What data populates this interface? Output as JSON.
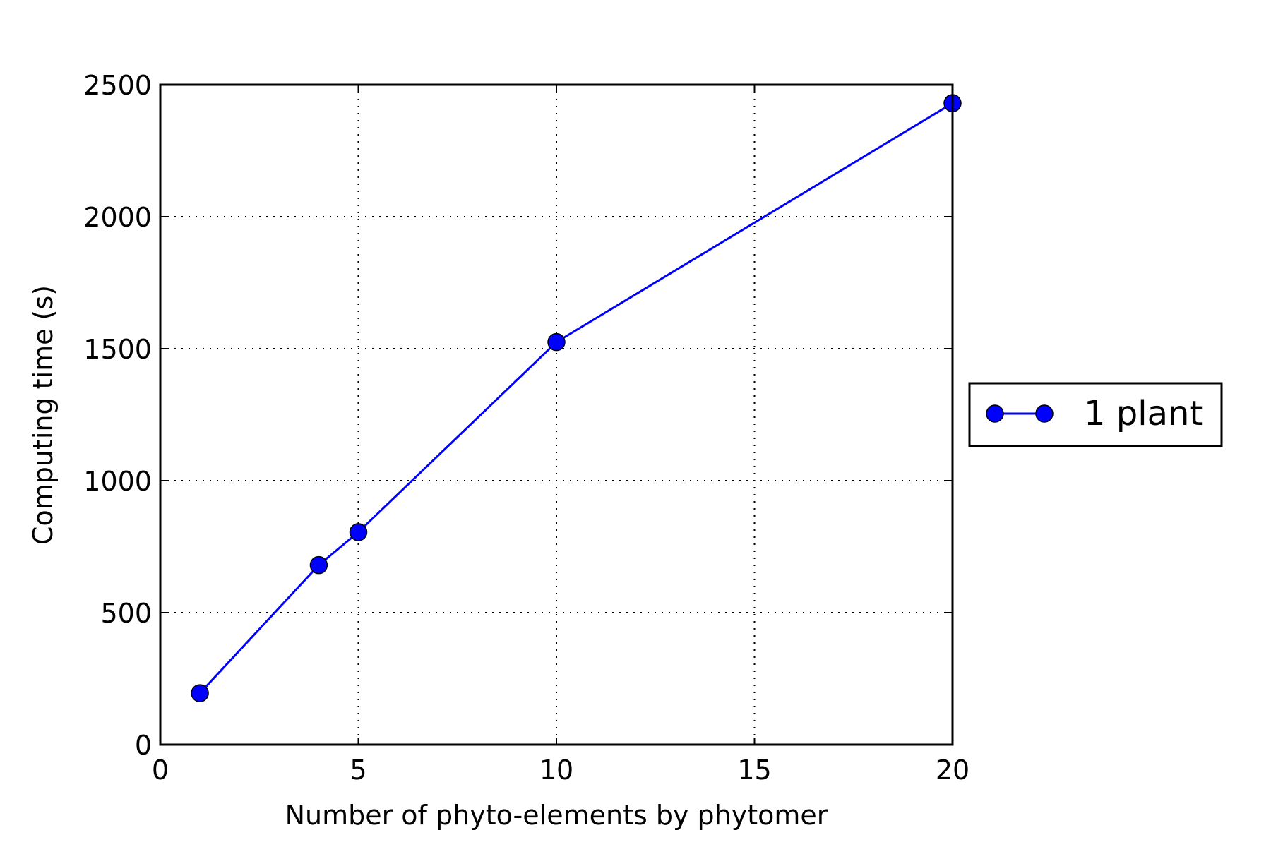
{
  "chart_data": {
    "type": "line",
    "xlabel": "Number of phyto-elements by phytomer",
    "ylabel": "Computing time (s)",
    "xlim": [
      0,
      20
    ],
    "ylim": [
      0,
      2500
    ],
    "xticks": [
      0,
      5,
      10,
      15,
      20
    ],
    "yticks": [
      0,
      500,
      1000,
      1500,
      2000,
      2500
    ],
    "grid": true,
    "legend_position": "right-outside",
    "series": [
      {
        "name": "1 plant",
        "color": "#0000ff",
        "marker": "circle",
        "x": [
          1,
          4,
          5,
          10,
          20
        ],
        "y": [
          195,
          680,
          805,
          1525,
          2430
        ]
      }
    ]
  }
}
